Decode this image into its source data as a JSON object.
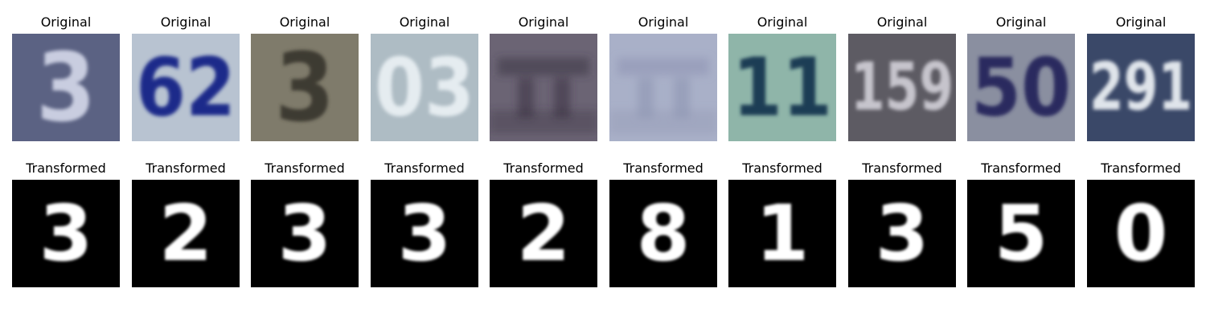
{
  "figure": {
    "rows": [
      {
        "name": "original",
        "title": "Original",
        "panels": [
          {
            "digits": "3",
            "bg": "#5b6283",
            "fg": "#c9cde0",
            "style": "svhn-light"
          },
          {
            "digits": "62",
            "bg": "#b8c3d1",
            "fg": "#1d2a8a",
            "style": "svhn-dark"
          },
          {
            "digits": "3",
            "bg": "#7f7b6b",
            "fg": "#3d3a30",
            "style": "svhn-dark"
          },
          {
            "digits": "03",
            "bg": "#aebcc4",
            "fg": "#e5ecf0",
            "style": "svhn-light"
          },
          {
            "digits": "",
            "bg": "#6b6474",
            "fg": "#3a3442",
            "style": "blur"
          },
          {
            "digits": "",
            "bg": "#a9b0c8",
            "fg": "#8e94b2",
            "style": "blur"
          },
          {
            "digits": "11",
            "bg": "#8fb5a9",
            "fg": "#1e3d55",
            "style": "svhn-dark"
          },
          {
            "digits": "159",
            "bg": "#5d5b63",
            "fg": "#c6c4cc",
            "style": "svhn-light"
          },
          {
            "digits": "50",
            "bg": "#8a8fa0",
            "fg": "#2a2c5e",
            "style": "svhn-dark"
          },
          {
            "digits": "291",
            "bg": "#3a4868",
            "fg": "#dfe4ea",
            "style": "svhn-light"
          }
        ]
      },
      {
        "name": "transformed",
        "title": "Transformed",
        "panels": [
          {
            "digits": "3",
            "bg": "#000000",
            "fg": "#ffffff",
            "style": "mnist"
          },
          {
            "digits": "2",
            "bg": "#000000",
            "fg": "#ffffff",
            "style": "mnist"
          },
          {
            "digits": "3",
            "bg": "#000000",
            "fg": "#ffffff",
            "style": "mnist"
          },
          {
            "digits": "3",
            "bg": "#000000",
            "fg": "#ffffff",
            "style": "mnist"
          },
          {
            "digits": "2",
            "bg": "#000000",
            "fg": "#ffffff",
            "style": "mnist"
          },
          {
            "digits": "8",
            "bg": "#000000",
            "fg": "#ffffff",
            "style": "mnist"
          },
          {
            "digits": "1",
            "bg": "#000000",
            "fg": "#ffffff",
            "style": "mnist"
          },
          {
            "digits": "3",
            "bg": "#000000",
            "fg": "#ffffff",
            "style": "mnist"
          },
          {
            "digits": "5",
            "bg": "#000000",
            "fg": "#ffffff",
            "style": "mnist"
          },
          {
            "digits": "0",
            "bg": "#000000",
            "fg": "#ffffff",
            "style": "mnist"
          }
        ]
      }
    ]
  }
}
